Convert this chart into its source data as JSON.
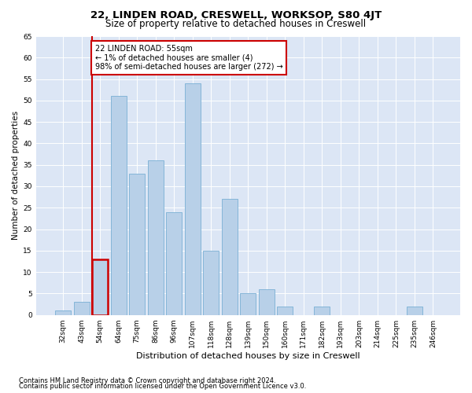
{
  "title": "22, LINDEN ROAD, CRESWELL, WORKSOP, S80 4JT",
  "subtitle": "Size of property relative to detached houses in Creswell",
  "xlabel": "Distribution of detached houses by size in Creswell",
  "ylabel": "Number of detached properties",
  "categories": [
    "32sqm",
    "43sqm",
    "54sqm",
    "64sqm",
    "75sqm",
    "86sqm",
    "96sqm",
    "107sqm",
    "118sqm",
    "128sqm",
    "139sqm",
    "150sqm",
    "160sqm",
    "171sqm",
    "182sqm",
    "193sqm",
    "203sqm",
    "214sqm",
    "225sqm",
    "235sqm",
    "246sqm"
  ],
  "values": [
    1,
    3,
    13,
    51,
    33,
    36,
    24,
    54,
    15,
    27,
    5,
    6,
    2,
    0,
    2,
    0,
    0,
    0,
    0,
    2,
    0
  ],
  "bar_color": "#b8d0e8",
  "bar_edgecolor": "#7aafd4",
  "highlight_index": 2,
  "highlight_color": "#cc0000",
  "annotation_text": "22 LINDEN ROAD: 55sqm\n← 1% of detached houses are smaller (4)\n98% of semi-detached houses are larger (272) →",
  "annotation_box_color": "#ffffff",
  "annotation_box_edgecolor": "#cc0000",
  "ylim": [
    0,
    65
  ],
  "yticks": [
    0,
    5,
    10,
    15,
    20,
    25,
    30,
    35,
    40,
    45,
    50,
    55,
    60,
    65
  ],
  "background_color": "#dce6f5",
  "footnote1": "Contains HM Land Registry data © Crown copyright and database right 2024.",
  "footnote2": "Contains public sector information licensed under the Open Government Licence v3.0.",
  "title_fontsize": 9.5,
  "subtitle_fontsize": 8.5,
  "xlabel_fontsize": 8,
  "ylabel_fontsize": 7.5,
  "tick_fontsize": 6.5,
  "annotation_fontsize": 7,
  "footnote_fontsize": 6
}
